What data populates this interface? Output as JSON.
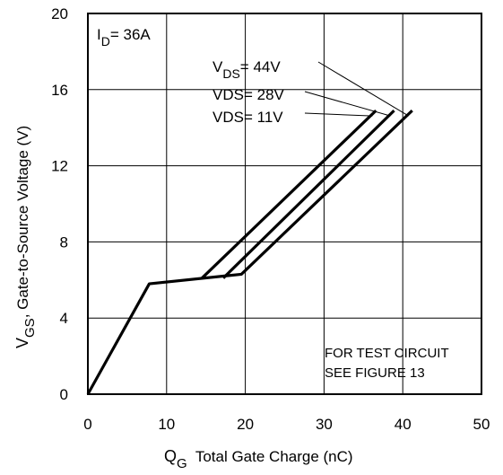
{
  "chart_data": {
    "type": "line",
    "xlabel": {
      "main": "Q",
      "sub": "G",
      "rest": "  Total Gate Charge (nC)"
    },
    "ylabel": {
      "main": "V",
      "sub": "GS",
      "rest": ", Gate-to-Source Voltage (V)"
    },
    "xlim": [
      0,
      50
    ],
    "ylim": [
      0,
      20
    ],
    "x_ticks": [
      0,
      10,
      20,
      30,
      40,
      50
    ],
    "y_ticks": [
      0,
      4,
      8,
      12,
      16,
      20
    ],
    "grid": true,
    "annotations": {
      "current": {
        "main": "I",
        "sub": "D",
        "rest": "= 36A"
      },
      "test_line1": "FOR TEST CIRCUIT",
      "test_line2": "SEE FIGURE 13"
    },
    "series": [
      {
        "name": {
          "main": "V",
          "sub": "DS",
          "rest": "= 44V"
        },
        "x": [
          0,
          7.8,
          19.5,
          41.2
        ],
        "y": [
          0,
          5.8,
          6.3,
          14.9
        ]
      },
      {
        "name": {
          "main": "VDS",
          "sub": "",
          "rest": "= 28V"
        },
        "x": [
          17.2,
          38.9
        ],
        "y": [
          6.1,
          14.9
        ]
      },
      {
        "name": {
          "main": "VDS",
          "sub": "",
          "rest": "= 11V"
        },
        "x": [
          14.5,
          36.6
        ],
        "y": [
          6.1,
          14.9
        ]
      }
    ],
    "colors": {
      "line": "#000000",
      "grid": "#000000"
    }
  }
}
